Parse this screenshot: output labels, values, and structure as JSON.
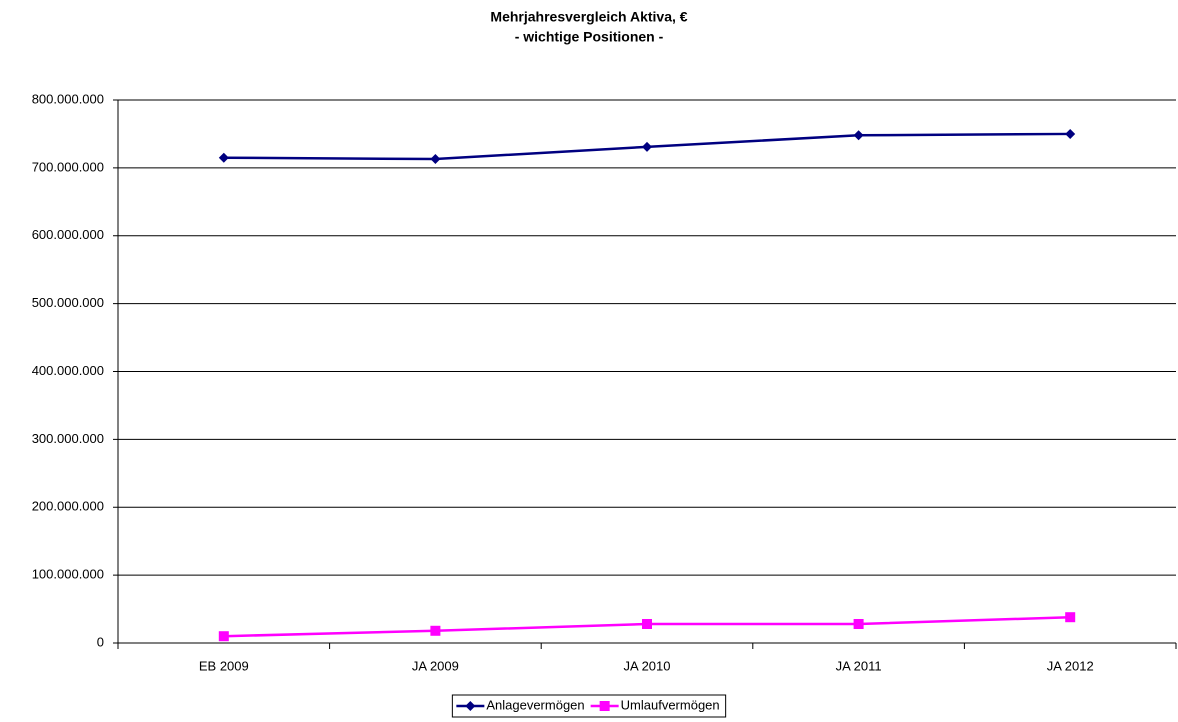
{
  "chart_data": {
    "type": "line",
    "title": "Mehrjahresvergleich Aktiva, €",
    "subtitle": "- wichtige Positionen -",
    "categories": [
      "EB 2009",
      "JA 2009",
      "JA 2010",
      "JA 2011",
      "JA 2012"
    ],
    "series": [
      {
        "name": "Anlagevermögen",
        "color": "#000080",
        "marker": "diamond",
        "values": [
          715000000,
          713000000,
          731000000,
          748000000,
          750000000
        ]
      },
      {
        "name": "Umlaufvermögen",
        "color": "#ff00ff",
        "marker": "square",
        "values": [
          10000000,
          18000000,
          28000000,
          28000000,
          38000000
        ]
      }
    ],
    "ylim": [
      0,
      800000000
    ],
    "yticks": [
      0,
      {
        "value": 100000000,
        "label": "100.000.000"
      },
      {
        "value": 200000000,
        "label": "200.000.000"
      },
      {
        "value": 300000000,
        "label": "300.000.000"
      },
      {
        "value": 400000000,
        "label": "400.000.000"
      },
      {
        "value": 500000000,
        "label": "500.000.000"
      },
      {
        "value": 600000000,
        "label": "600.000.000"
      },
      {
        "value": 700000000,
        "label": "700.000.000"
      },
      {
        "value": 800000000,
        "label": "800.000.000"
      }
    ],
    "grid": true,
    "legend": "bottom"
  }
}
